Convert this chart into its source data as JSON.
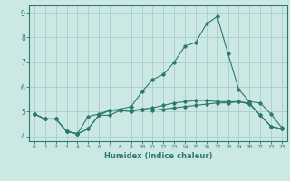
{
  "title": "",
  "xlabel": "Humidex (Indice chaleur)",
  "x_values": [
    0,
    1,
    2,
    3,
    4,
    5,
    6,
    7,
    8,
    9,
    10,
    11,
    12,
    13,
    14,
    15,
    16,
    17,
    18,
    19,
    20,
    21,
    22,
    23
  ],
  "line1": [
    4.9,
    4.7,
    4.7,
    4.2,
    4.1,
    4.8,
    4.9,
    5.05,
    5.05,
    5.0,
    5.1,
    5.05,
    5.1,
    5.15,
    5.2,
    5.25,
    5.3,
    5.35,
    5.35,
    5.4,
    5.35,
    4.85,
    4.4,
    4.3
  ],
  "line2": [
    4.9,
    4.7,
    4.7,
    4.2,
    4.1,
    4.3,
    4.85,
    4.85,
    5.05,
    5.05,
    5.1,
    5.15,
    5.25,
    5.35,
    5.4,
    5.45,
    5.45,
    5.4,
    5.4,
    5.4,
    5.3,
    4.85,
    4.4,
    4.3
  ],
  "line3": [
    4.9,
    4.7,
    4.7,
    4.2,
    4.1,
    4.3,
    4.85,
    5.05,
    5.1,
    5.2,
    5.8,
    6.3,
    6.5,
    7.0,
    7.65,
    7.8,
    8.55,
    8.85,
    7.35,
    5.9,
    5.4,
    5.35,
    4.9,
    4.35
  ],
  "line_color": "#2a7a6a",
  "bg_color": "#cce8e4",
  "grid_color": "#aaccc8",
  "ylim": [
    3.8,
    9.3
  ],
  "xlim": [
    -0.5,
    23.5
  ]
}
